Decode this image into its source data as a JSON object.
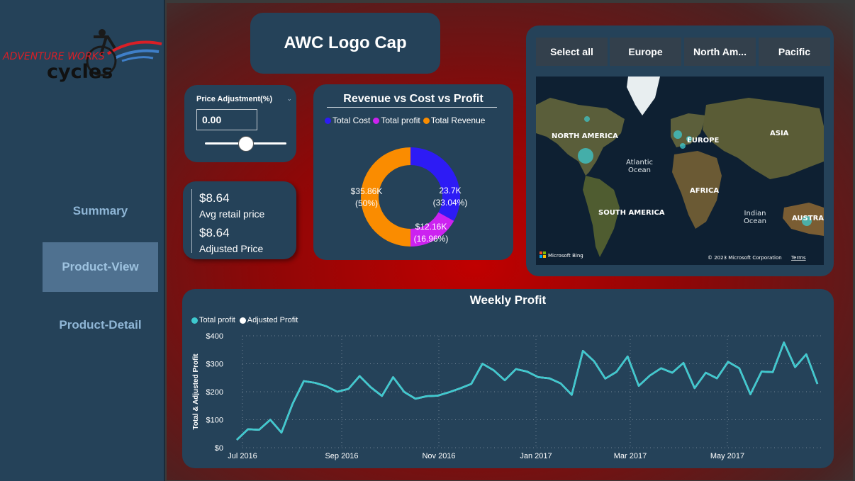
{
  "colors": {
    "panel": "#254259",
    "accent_blue": "#2d1bf5",
    "accent_purple": "#cc22f0",
    "accent_orange": "#fa8c00",
    "teal": "#3ec9cf"
  },
  "sidebar": {
    "logo_text_top": "ADVENTURE WORKS",
    "logo_text_bottom": "cycles",
    "items": [
      {
        "label": "Summary",
        "active": false
      },
      {
        "label": "Product-View",
        "active": true
      },
      {
        "label": "Product-Detail",
        "active": false
      }
    ]
  },
  "title": "AWC Logo Cap",
  "price_adjustment": {
    "label": "Price Adjustment(%)",
    "value": "0.00",
    "slider_fraction": 0.5
  },
  "kpis": {
    "avg_retail_value": "$8.64",
    "avg_retail_label": "Avg retail price",
    "adjusted_value": "$8.64",
    "adjusted_label": "Adjusted Price"
  },
  "donut": {
    "title": "Revenue vs Cost vs Profit",
    "legend": [
      "Total Cost",
      "Total profit",
      "Total Revenue"
    ],
    "slices": [
      {
        "name": "Total Cost",
        "color": "#2d1bf5",
        "percent": 33.04,
        "value_label": "23.7K",
        "pct_label": "(33.04%)"
      },
      {
        "name": "Total profit",
        "color": "#cc22f0",
        "percent": 16.96,
        "value_label": "$12.16K",
        "pct_label": "(16.96%)"
      },
      {
        "name": "Total Revenue",
        "color": "#fa8c00",
        "percent": 50,
        "value_label": "$35.86K",
        "pct_label": "(50%)"
      }
    ]
  },
  "map": {
    "buttons": [
      "Select all",
      "Europe",
      "North Am...",
      "Pacific"
    ],
    "labels": {
      "north_america": "NORTH AMERICA",
      "europe": "EUROPE",
      "asia": "ASIA",
      "atlantic": "Atlantic",
      "ocean1": "Ocean",
      "africa": "AFRICA",
      "south_america": "SOUTH AMERICA",
      "indian": "Indian",
      "ocean2": "Ocean",
      "australia": "AUSTRAL"
    },
    "attribution_left": "Microsoft Bing",
    "attribution_right": "© 2023 Microsoft Corporation",
    "terms": "Terms"
  },
  "chart_data": {
    "type": "line",
    "title": "Weekly Profit",
    "ylabel": "Total & Adjusted Profit",
    "ylim": [
      0,
      400
    ],
    "yticks": [
      "$0",
      "$100",
      "$200",
      "$300",
      "$400"
    ],
    "xticks": [
      "Jul 2016",
      "Sep 2016",
      "Nov 2016",
      "Jan 2017",
      "Mar 2017",
      "May 2017"
    ],
    "legend": [
      "Total profit",
      "Adjusted Profit"
    ],
    "series": [
      {
        "name": "Total profit",
        "color": "#3ec9cf",
        "values": [
          28,
          66,
          64,
          100,
          54,
          157,
          238,
          232,
          220,
          200,
          210,
          256,
          216,
          185,
          252,
          199,
          175,
          184,
          186,
          198,
          212,
          228,
          300,
          277,
          241,
          281,
          272,
          252,
          248,
          230,
          189,
          346,
          309,
          247,
          271,
          326,
          221,
          258,
          284,
          268,
          303,
          213,
          268,
          248,
          307,
          284,
          191,
          272,
          270,
          376,
          288,
          334,
          228
        ]
      },
      {
        "name": "Adjusted Profit",
        "color": "#ffffff",
        "values": [
          28,
          66,
          64,
          100,
          54,
          157,
          238,
          232,
          220,
          200,
          210,
          256,
          216,
          185,
          252,
          199,
          175,
          184,
          186,
          198,
          212,
          228,
          300,
          277,
          241,
          281,
          272,
          252,
          248,
          230,
          189,
          346,
          309,
          247,
          271,
          326,
          221,
          258,
          284,
          268,
          303,
          213,
          268,
          248,
          307,
          284,
          191,
          272,
          270,
          376,
          288,
          334,
          228
        ]
      }
    ]
  }
}
